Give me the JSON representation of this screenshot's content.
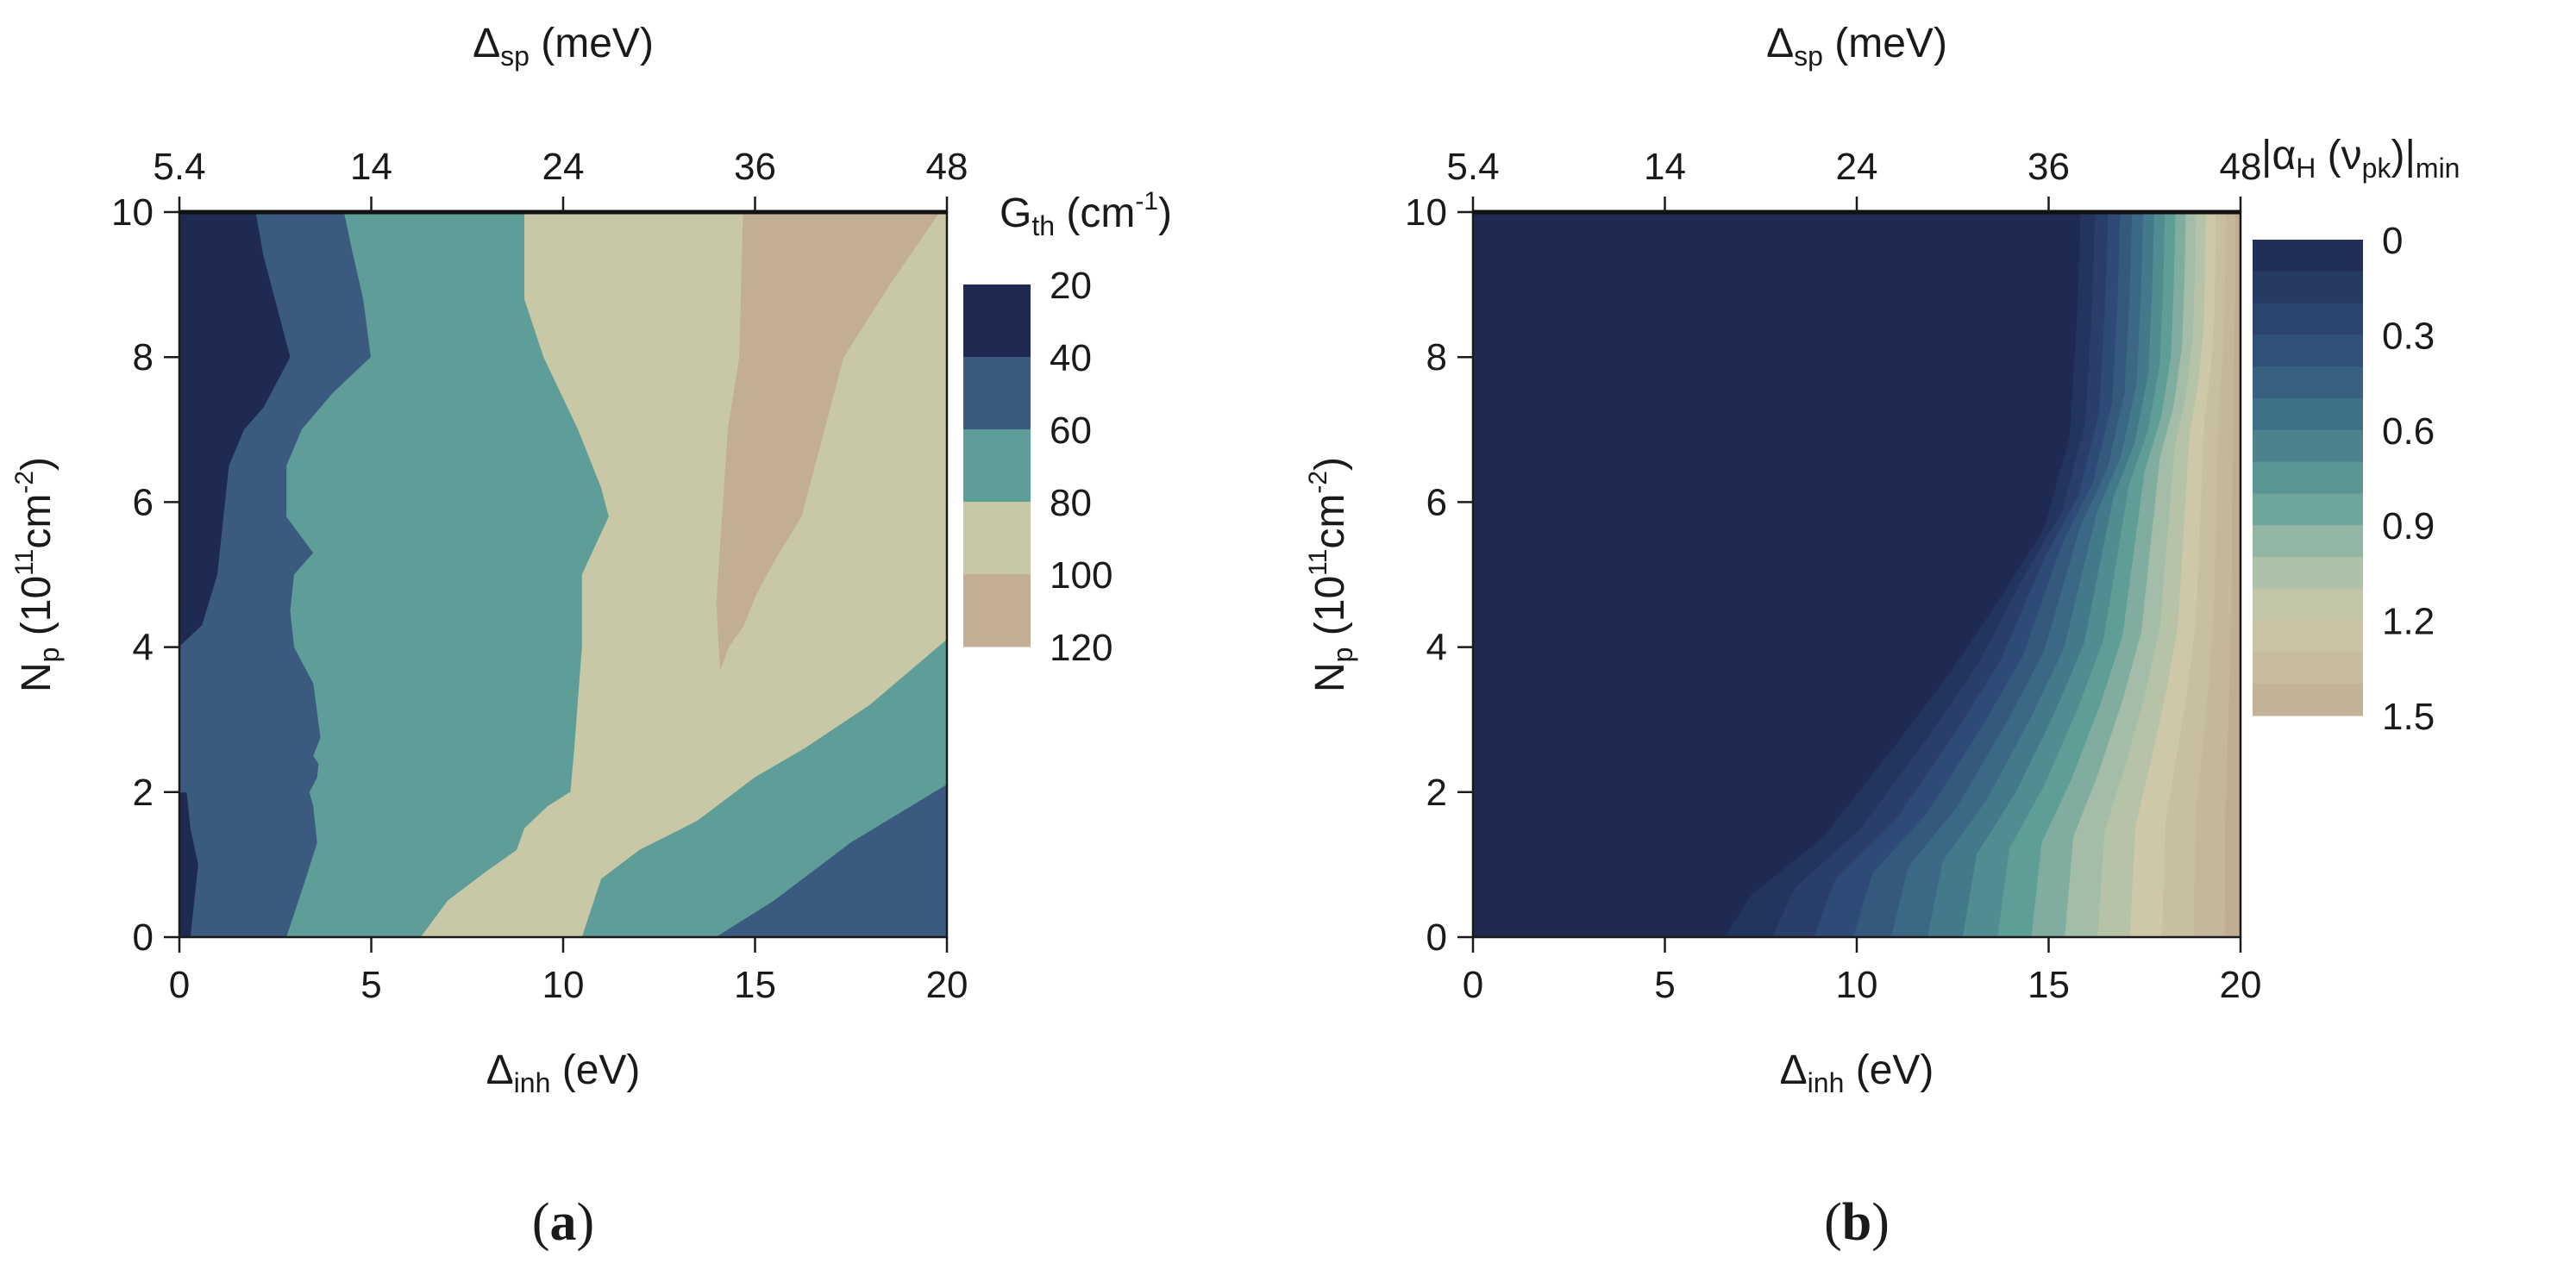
{
  "chart_data": [
    {
      "type": "heatmap",
      "subtype": "filled-contour",
      "panel_label": {
        "open": "(",
        "letter": "a",
        "close": ")"
      },
      "xlabel": {
        "main": "Δ",
        "sub": "inh",
        "rest": " (eV)"
      },
      "x2label": {
        "main": "Δ",
        "sub": "sp",
        "rest": " (meV)"
      },
      "ylabel": {
        "main": "N",
        "sub": "p",
        "rest": " (10",
        "sup": "11",
        "rest2": "cm",
        "sup2": "-2",
        "rest3": ")"
      },
      "xlim": [
        0,
        20
      ],
      "ylim": [
        0,
        10
      ],
      "x_ticks": [
        0,
        5,
        10,
        15,
        20
      ],
      "x_tick_labels": [
        "0",
        "5",
        "10",
        "15",
        "20"
      ],
      "y_ticks": [
        0,
        2,
        4,
        6,
        8,
        10
      ],
      "y_tick_labels": [
        "0",
        "2",
        "4",
        "6",
        "8",
        "10"
      ],
      "x2_tick_positions": [
        0,
        5,
        10,
        15,
        20
      ],
      "x2_tick_labels": [
        "5.4",
        "14",
        "24",
        "36",
        "48"
      ],
      "colorbar": {
        "title": {
          "main": "G",
          "sub": "th",
          "rest": " (cm",
          "sup": "-1",
          "rest2": ")"
        },
        "levels": [
          20,
          40,
          60,
          80,
          100,
          120
        ],
        "level_labels": [
          "20",
          "40",
          "60",
          "80",
          "100",
          "120"
        ],
        "colors": [
          "#1e2a52",
          "#3a5a80",
          "#5f9e98",
          "#c9c8a6",
          "#c2ae94"
        ]
      },
      "regions": [
        {
          "band": "20-40",
          "color": "#1e2a52",
          "polygon": [
            [
              0,
              0
            ],
            [
              0.3,
              0
            ],
            [
              0.4,
              0.5
            ],
            [
              0.5,
              1.0
            ],
            [
              0.3,
              1.5
            ],
            [
              0.2,
              2.0
            ],
            [
              0,
              2.0
            ]
          ]
        },
        {
          "band": "20-40",
          "color": "#1e2a52",
          "polygon": [
            [
              0,
              4.0
            ],
            [
              0.6,
              4.3
            ],
            [
              1.0,
              5.0
            ],
            [
              1.3,
              6.5
            ],
            [
              1.7,
              7.0
            ],
            [
              2.2,
              7.3
            ],
            [
              2.9,
              8.0
            ],
            [
              2.6,
              8.6
            ],
            [
              2.2,
              9.4
            ],
            [
              2.0,
              10
            ],
            [
              0,
              10
            ]
          ]
        },
        {
          "band": "40-60",
          "color": "#3a5a80",
          "polygon": [
            [
              0.3,
              0
            ],
            [
              2.8,
              0
            ],
            [
              3.3,
              0.8
            ],
            [
              3.6,
              1.3
            ],
            [
              3.5,
              1.8
            ],
            [
              3.4,
              2.0
            ],
            [
              3.6,
              2.2
            ],
            [
              3.7,
              2.7
            ],
            [
              3.5,
              3.5
            ],
            [
              3.1,
              3.9
            ],
            [
              3.0,
              4.0
            ],
            [
              2.9,
              4.5
            ],
            [
              3.0,
              5.0
            ],
            [
              3.5,
              5.3
            ],
            [
              2.8,
              5.8
            ],
            [
              2.8,
              6.5
            ],
            [
              3.2,
              7.0
            ],
            [
              4.0,
              7.5
            ],
            [
              5.0,
              8.0
            ],
            [
              4.8,
              8.8
            ],
            [
              4.5,
              9.5
            ],
            [
              4.3,
              10
            ],
            [
              2.0,
              10
            ],
            [
              2.2,
              9.4
            ],
            [
              2.6,
              8.6
            ],
            [
              2.9,
              8.0
            ],
            [
              2.2,
              7.3
            ],
            [
              1.7,
              7.0
            ],
            [
              1.3,
              6.5
            ],
            [
              1.0,
              5.0
            ],
            [
              0.6,
              4.3
            ],
            [
              0,
              4.0
            ],
            [
              0,
              2.0
            ],
            [
              0.2,
              2.0
            ],
            [
              0.3,
              1.5
            ],
            [
              0.5,
              1.0
            ],
            [
              0.4,
              0.5
            ]
          ]
        },
        {
          "band": "60-80",
          "color": "#5f9e98",
          "polygon": [
            [
              2.8,
              0
            ],
            [
              6.3,
              0
            ],
            [
              7.0,
              0.5
            ],
            [
              8.0,
              0.9
            ],
            [
              8.8,
              1.2
            ],
            [
              9.0,
              1.5
            ],
            [
              9.6,
              1.8
            ],
            [
              10.2,
              2.0
            ],
            [
              10.3,
              2.6
            ],
            [
              10.5,
              4.0
            ],
            [
              10.5,
              5.0
            ],
            [
              11.2,
              5.8
            ],
            [
              11.0,
              6.2
            ],
            [
              10.4,
              7.0
            ],
            [
              9.5,
              8.0
            ],
            [
              9.0,
              8.8
            ],
            [
              9.0,
              10
            ],
            [
              4.3,
              10
            ],
            [
              4.5,
              9.5
            ],
            [
              4.8,
              8.8
            ],
            [
              5.0,
              8.0
            ],
            [
              4.0,
              7.5
            ],
            [
              3.2,
              7.0
            ],
            [
              2.8,
              6.5
            ],
            [
              2.8,
              5.8
            ],
            [
              3.5,
              5.3
            ],
            [
              3.0,
              5.0
            ],
            [
              2.9,
              4.5
            ],
            [
              3.0,
              4.0
            ],
            [
              3.1,
              3.9
            ],
            [
              3.5,
              3.5
            ],
            [
              3.7,
              2.7
            ],
            [
              3.6,
              2.2
            ],
            [
              3.4,
              2.0
            ],
            [
              3.5,
              1.8
            ],
            [
              3.6,
              1.3
            ],
            [
              3.3,
              0.8
            ]
          ]
        },
        {
          "band": "60-80",
          "color": "#5f9e98",
          "polygon": [
            [
              3.5,
              2.5
            ],
            [
              4.0,
              2.1
            ],
            [
              4.5,
              1.7
            ],
            [
              5.0,
              1.5
            ],
            [
              5.5,
              1.7
            ],
            [
              6.2,
              2.0
            ],
            [
              6.0,
              3.0
            ],
            [
              5.3,
              3.8
            ],
            [
              5.8,
              4.2
            ],
            [
              5.5,
              4.5
            ],
            [
              5.0,
              4.1
            ],
            [
              4.3,
              3.3
            ],
            [
              3.8,
              2.9
            ]
          ]
        },
        {
          "band": "80-100",
          "color": "#c9c8a6",
          "polygon": [
            [
              6.3,
              0
            ],
            [
              10.5,
              0
            ],
            [
              11.0,
              0.8
            ],
            [
              12.0,
              1.2
            ],
            [
              13.5,
              1.6
            ],
            [
              15.0,
              2.2
            ],
            [
              16.3,
              2.6
            ],
            [
              18.0,
              3.2
            ],
            [
              20,
              4.1
            ],
            [
              20,
              10
            ],
            [
              19.8,
              10
            ],
            [
              18.5,
              9.0
            ],
            [
              17.3,
              8.0
            ],
            [
              16.2,
              5.8
            ],
            [
              15.5,
              5.2
            ],
            [
              15.0,
              4.7
            ],
            [
              14.7,
              4.3
            ],
            [
              14.3,
              4.0
            ],
            [
              14.1,
              3.7
            ],
            [
              14.0,
              4.6
            ],
            [
              14.3,
              7.0
            ],
            [
              14.6,
              8.0
            ],
            [
              14.7,
              10
            ],
            [
              9.0,
              10
            ],
            [
              9.0,
              8.8
            ],
            [
              9.5,
              8.0
            ],
            [
              10.4,
              7.0
            ],
            [
              11.0,
              6.2
            ],
            [
              11.2,
              5.8
            ],
            [
              10.5,
              5.0
            ],
            [
              10.5,
              4.0
            ],
            [
              10.3,
              2.6
            ],
            [
              10.2,
              2.0
            ],
            [
              9.6,
              1.8
            ],
            [
              9.0,
              1.5
            ],
            [
              8.8,
              1.2
            ],
            [
              8.0,
              0.9
            ],
            [
              7.0,
              0.5
            ]
          ]
        },
        {
          "band": "100-120",
          "color": "#c2ae94",
          "polygon": [
            [
              14.7,
              10
            ],
            [
              14.6,
              8.0
            ],
            [
              14.3,
              7.0
            ],
            [
              14.0,
              4.6
            ],
            [
              14.1,
              3.7
            ],
            [
              14.3,
              4.0
            ],
            [
              14.7,
              4.3
            ],
            [
              15.0,
              4.7
            ],
            [
              15.5,
              5.2
            ],
            [
              16.2,
              5.8
            ],
            [
              17.3,
              8.0
            ],
            [
              18.5,
              9.0
            ],
            [
              19.8,
              10
            ]
          ]
        },
        {
          "band": "60-80",
          "color": "#5f9e98",
          "polygon": [
            [
              10.5,
              0
            ],
            [
              14.0,
              0
            ],
            [
              15.5,
              0.5
            ],
            [
              17.5,
              1.3
            ],
            [
              20,
              2.1
            ],
            [
              20,
              4.1
            ],
            [
              18.0,
              3.2
            ],
            [
              16.3,
              2.6
            ],
            [
              15.0,
              2.2
            ],
            [
              13.5,
              1.6
            ],
            [
              12.0,
              1.2
            ],
            [
              11.0,
              0.8
            ]
          ]
        },
        {
          "band": "40-60",
          "color": "#3a5a80",
          "polygon": [
            [
              14.0,
              0
            ],
            [
              20,
              0
            ],
            [
              20,
              2.1
            ],
            [
              17.5,
              1.3
            ],
            [
              15.5,
              0.5
            ]
          ]
        }
      ]
    },
    {
      "type": "heatmap",
      "subtype": "filled-contour",
      "panel_label": {
        "open": "(",
        "letter": "b",
        "close": ")"
      },
      "xlabel": {
        "main": "Δ",
        "sub": "inh",
        "rest": " (eV)"
      },
      "x2label": {
        "main": "Δ",
        "sub": "sp",
        "rest": " (meV)"
      },
      "ylabel": {
        "main": "N",
        "sub": "p",
        "rest": " (10",
        "sup": "11",
        "rest2": "cm",
        "sup2": "-2",
        "rest3": ")"
      },
      "xlim": [
        0,
        20
      ],
      "ylim": [
        0,
        10
      ],
      "x_ticks": [
        0,
        5,
        10,
        15,
        20
      ],
      "x_tick_labels": [
        "0",
        "5",
        "10",
        "15",
        "20"
      ],
      "y_ticks": [
        0,
        2,
        4,
        6,
        8,
        10
      ],
      "y_tick_labels": [
        "0",
        "2",
        "4",
        "6",
        "8",
        "10"
      ],
      "x2_tick_positions": [
        0,
        5,
        10,
        15,
        20
      ],
      "x2_tick_labels": [
        "5.4",
        "14",
        "24",
        "36",
        "48"
      ],
      "colorbar": {
        "title": {
          "open": "|",
          "main": "α",
          "sub": "H",
          "mid": " (ν",
          "sub2": "pk",
          "close": ")|",
          "sub3": "min"
        },
        "range": [
          0,
          1.5
        ],
        "ticks": [
          0,
          0.3,
          0.6,
          0.9,
          1.2,
          1.5
        ],
        "tick_labels": [
          "0",
          "0.3",
          "0.6",
          "0.9",
          "1.2",
          "1.5"
        ],
        "steps": 15,
        "colormap": [
          {
            "v": 0.0,
            "color": "#1e2a52"
          },
          {
            "v": 0.3,
            "color": "#2e4a76"
          },
          {
            "v": 0.55,
            "color": "#3e7088"
          },
          {
            "v": 0.8,
            "color": "#5e9e96"
          },
          {
            "v": 1.0,
            "color": "#a3bda8"
          },
          {
            "v": 1.2,
            "color": "#ccc8a8"
          },
          {
            "v": 1.5,
            "color": "#c0ae94"
          }
        ]
      },
      "field_description": "value rises from 0 toward large Δinh and small Np",
      "zero_boundary": [
        [
          15.6,
          10
        ],
        [
          15.5,
          8.5
        ],
        [
          15.3,
          6.8
        ],
        [
          14.6,
          5.5
        ],
        [
          13.5,
          4.6
        ],
        [
          12.0,
          3.6
        ],
        [
          10.5,
          2.6
        ],
        [
          8.5,
          1.3
        ],
        [
          6.5,
          0.5
        ],
        [
          5.8,
          0
        ]
      ],
      "max_value_at_corner": {
        "x": 20,
        "y": 0,
        "value": 1.5
      }
    }
  ]
}
